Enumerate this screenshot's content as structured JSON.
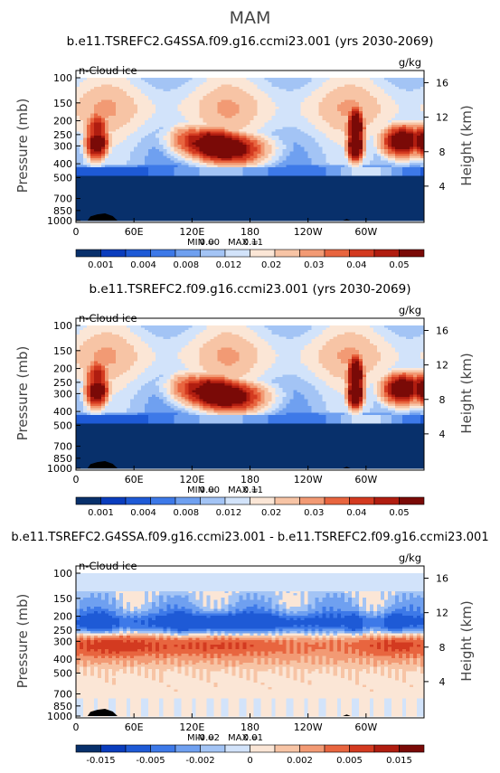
{
  "figure": {
    "season": "MAM"
  },
  "chart_data": [
    {
      "type": "heatmap",
      "title": "b.e11.TSREFC2.G4SSA.f09.g16.ccmi23.001 (yrs 2030-2069)",
      "field": "n-Cloud ice",
      "units": "g/kg",
      "ylabel": "Pressure (mb)",
      "ylabel_right": "Height (km)",
      "x_ticks": [
        "0",
        "60E",
        "120E",
        "180",
        "120W",
        "60W"
      ],
      "x_tick_values": [
        0,
        60,
        120,
        180,
        240,
        300
      ],
      "xlim": [
        0,
        360
      ],
      "y_ticks": [
        "100",
        "150",
        "200",
        "250",
        "300",
        "400",
        "500",
        "700",
        "850",
        "1000"
      ],
      "y_tick_values": [
        100,
        150,
        200,
        250,
        300,
        400,
        500,
        700,
        850,
        1000
      ],
      "ylim": [
        1000,
        100
      ],
      "height_ticks": [
        "4",
        "8",
        "12",
        "16"
      ],
      "height_tick_values": [
        4,
        8,
        12,
        16
      ],
      "stats": {
        "min_label": "MIN =",
        "min": "0.00",
        "max_label": "MAX =",
        "max": "0.11"
      },
      "colorbar": {
        "labels": [
          "0.001",
          "0.004",
          "0.008",
          "0.012",
          "0.02",
          "0.03",
          "0.04",
          "0.05"
        ],
        "colors": [
          "#08306b",
          "#0a3dbd",
          "#1e5ad6",
          "#3d79e8",
          "#6fa0f0",
          "#a3c4f5",
          "#d2e3fa",
          "#fbe6d6",
          "#f7c4a5",
          "#f29a74",
          "#e8653f",
          "#d33a20",
          "#b01d10",
          "#7a0a07"
        ]
      },
      "pattern": "cloud-ice-control",
      "log_scale": true,
      "grid": false
    },
    {
      "type": "heatmap",
      "title": "b.e11.TSREFC2.f09.g16.ccmi23.001 (yrs 2030-2069)",
      "field": "n-Cloud ice",
      "units": "g/kg",
      "ylabel": "Pressure (mb)",
      "ylabel_right": "Height (km)",
      "x_ticks": [
        "0",
        "60E",
        "120E",
        "180",
        "120W",
        "60W"
      ],
      "x_tick_values": [
        0,
        60,
        120,
        180,
        240,
        300
      ],
      "xlim": [
        0,
        360
      ],
      "y_ticks": [
        "100",
        "150",
        "200",
        "250",
        "300",
        "400",
        "500",
        "700",
        "850",
        "1000"
      ],
      "y_tick_values": [
        100,
        150,
        200,
        250,
        300,
        400,
        500,
        700,
        850,
        1000
      ],
      "ylim": [
        1000,
        100
      ],
      "height_ticks": [
        "4",
        "8",
        "12",
        "16"
      ],
      "height_tick_values": [
        4,
        8,
        12,
        16
      ],
      "stats": {
        "min_label": "MIN =",
        "min": "0.00",
        "max_label": "MAX =",
        "max": "0.11"
      },
      "colorbar": {
        "labels": [
          "0.001",
          "0.004",
          "0.008",
          "0.012",
          "0.02",
          "0.03",
          "0.04",
          "0.05"
        ],
        "colors": [
          "#08306b",
          "#0a3dbd",
          "#1e5ad6",
          "#3d79e8",
          "#6fa0f0",
          "#a3c4f5",
          "#d2e3fa",
          "#fbe6d6",
          "#f7c4a5",
          "#f29a74",
          "#e8653f",
          "#d33a20",
          "#b01d10",
          "#7a0a07"
        ]
      },
      "pattern": "cloud-ice-control",
      "log_scale": true,
      "grid": false
    },
    {
      "type": "heatmap",
      "title": "b.e11.TSREFC2.G4SSA.f09.g16.ccmi23.001 - b.e11.TSREFC2.f09.g16.ccmi23.001",
      "field": "n-Cloud ice",
      "units": "g/kg",
      "ylabel": "Pressure (mb)",
      "ylabel_right": "Height (km)",
      "x_ticks": [
        "0",
        "60E",
        "120E",
        "180",
        "120W",
        "60W"
      ],
      "x_tick_values": [
        0,
        60,
        120,
        180,
        240,
        300
      ],
      "xlim": [
        0,
        360
      ],
      "y_ticks": [
        "100",
        "150",
        "200",
        "250",
        "300",
        "400",
        "500",
        "700",
        "850",
        "1000"
      ],
      "y_tick_values": [
        100,
        150,
        200,
        250,
        300,
        400,
        500,
        700,
        850,
        1000
      ],
      "ylim": [
        1000,
        100
      ],
      "height_ticks": [
        "4",
        "8",
        "12",
        "16"
      ],
      "height_tick_values": [
        4,
        8,
        12,
        16
      ],
      "stats": {
        "min_label": "MIN =",
        "min": "-0.02",
        "max_label": "MAX =",
        "max": "0.01"
      },
      "colorbar": {
        "labels": [
          "-0.015",
          "-0.005",
          "-0.002",
          "0",
          "0.002",
          "0.005",
          "0.015"
        ],
        "colors": [
          "#08306b",
          "#0a3dbd",
          "#1e5ad6",
          "#3d79e8",
          "#6fa0f0",
          "#a3c4f5",
          "#d2e3fa",
          "#fbe6d6",
          "#f7c4a5",
          "#f29a74",
          "#e8653f",
          "#d33a20",
          "#b01d10",
          "#7a0a07"
        ]
      },
      "pattern": "cloud-ice-difference",
      "log_scale": true,
      "grid": false
    }
  ]
}
